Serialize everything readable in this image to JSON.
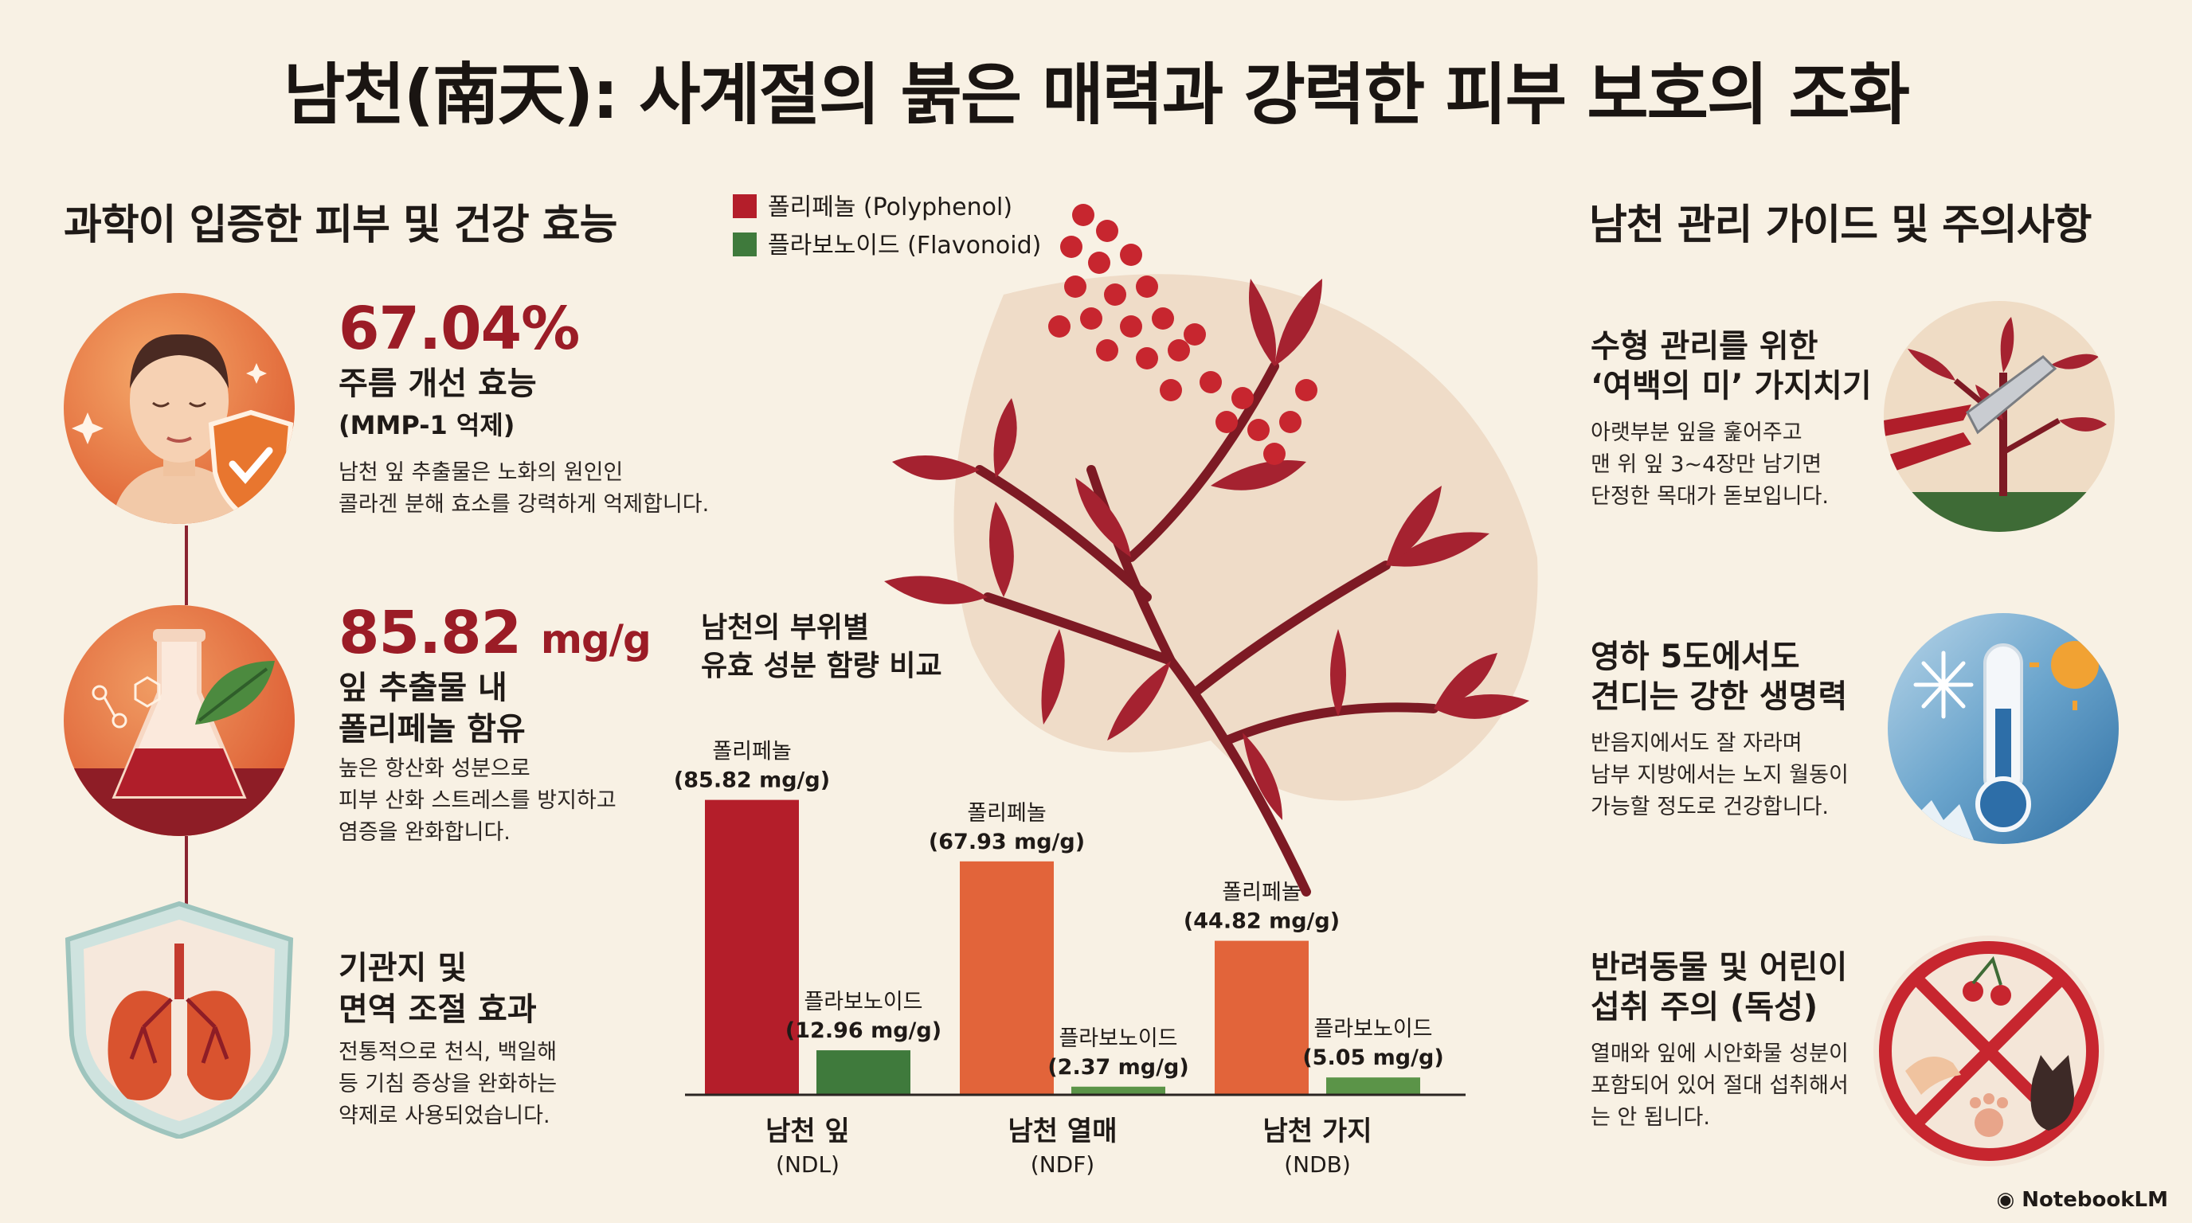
{
  "title": "남천(南天): 사계절의 붉은 매력과 강력한 피부 보호의 조화",
  "left": {
    "section_title": "과학이 입증한 피부 및 건강 효능",
    "benefits": [
      {
        "value": "67.04%",
        "unit": "",
        "title_line1": "주름 개선 효능",
        "title_line2": "(MMP-1 억제)",
        "desc_line1": "남천 잎 추출물은 노화의 원인인",
        "desc_line2": "콜라겐 분해 효소를 강력하게 억제합니다.",
        "desc_line3": "",
        "icon": "face-shield-icon"
      },
      {
        "value": "85.82",
        "unit": "mg/g",
        "title_line1": "잎 추출물 내",
        "title_line2": "폴리페놀 함유",
        "desc_line1": "높은 항산화 성분으로",
        "desc_line2": "피부 산화 스트레스를 방지하고",
        "desc_line3": "염증을 완화합니다.",
        "icon": "flask-leaf-icon"
      },
      {
        "value": "",
        "unit": "",
        "title_line1": "기관지 및",
        "title_line2": "면역 조절 효과",
        "desc_line1": "전통적으로 천식, 백일해",
        "desc_line2": "등 기침 증상을 완화하는",
        "desc_line3": "약제로 사용되었습니다.",
        "icon": "lungs-icon"
      }
    ]
  },
  "chart": {
    "legend": [
      {
        "name": "폴리페놀 (Polyphenol)",
        "color": "#b41e2a"
      },
      {
        "name": "플라보노이드 (Flavonoid)",
        "color": "#3f7a3c"
      }
    ],
    "heading_line1": "남천의 부위별",
    "heading_line2": "유효 성분 함량 비교"
  },
  "chart_data": {
    "type": "bar",
    "categories": [
      "남천 잎",
      "남천 열매",
      "남천 가지"
    ],
    "category_codes": [
      "(NDL)",
      "(NDF)",
      "(NDB)"
    ],
    "series": [
      {
        "name": "폴리페놀",
        "values": [
          85.82,
          67.93,
          44.82
        ],
        "colors": [
          "#b41e2a",
          "#e2643a",
          "#e2643a"
        ]
      },
      {
        "name": "플라보노이드",
        "values": [
          12.96,
          2.37,
          5.05
        ],
        "colors": [
          "#3f7a3c",
          "#5b9448",
          "#5b9448"
        ]
      }
    ],
    "labels": [
      [
        "폴리페놀",
        "(85.82 mg/g)"
      ],
      [
        "플라보노이드",
        "(12.96 mg/g)"
      ],
      [
        "폴리페놀",
        "(67.93 mg/g)"
      ],
      [
        "플라보노이드",
        "(2.37 mg/g)"
      ],
      [
        "폴리페놀",
        "(44.82 mg/g)"
      ],
      [
        "플라보노이드",
        "(5.05 mg/g)"
      ]
    ],
    "ylim": [
      0,
      95
    ]
  },
  "right": {
    "section_title": "남천 관리 가이드 및 주의사항",
    "items": [
      {
        "title_line1": "수형 관리를 위한",
        "title_line2": "‘여백의 미’ 가지치기",
        "desc_line1": "아랫부분 잎을 훑어주고",
        "desc_line2": "맨 위 잎 3~4장만 남기면",
        "desc_line3": "단정한 목대가 돋보입니다.",
        "icon": "pruning-shears-icon"
      },
      {
        "title_line1": "영하 5도에서도",
        "title_line2": "견디는 강한 생명력",
        "desc_line1": "반음지에서도 잘 자라며",
        "desc_line2": "남부 지방에서는 노지 월동이",
        "desc_line3": "가능할 정도로 건강합니다.",
        "icon": "thermometer-icon"
      },
      {
        "title_line1": "반려동물 및 어린이",
        "title_line2": "섭취 주의 (독성)",
        "desc_line1": "열매와 잎에 시안화물 성분이",
        "desc_line2": "포함되어 있어 절대 섭취해서",
        "desc_line3": "는 안 됩니다.",
        "icon": "no-pets-icon"
      }
    ]
  },
  "brand": "NotebookLM"
}
